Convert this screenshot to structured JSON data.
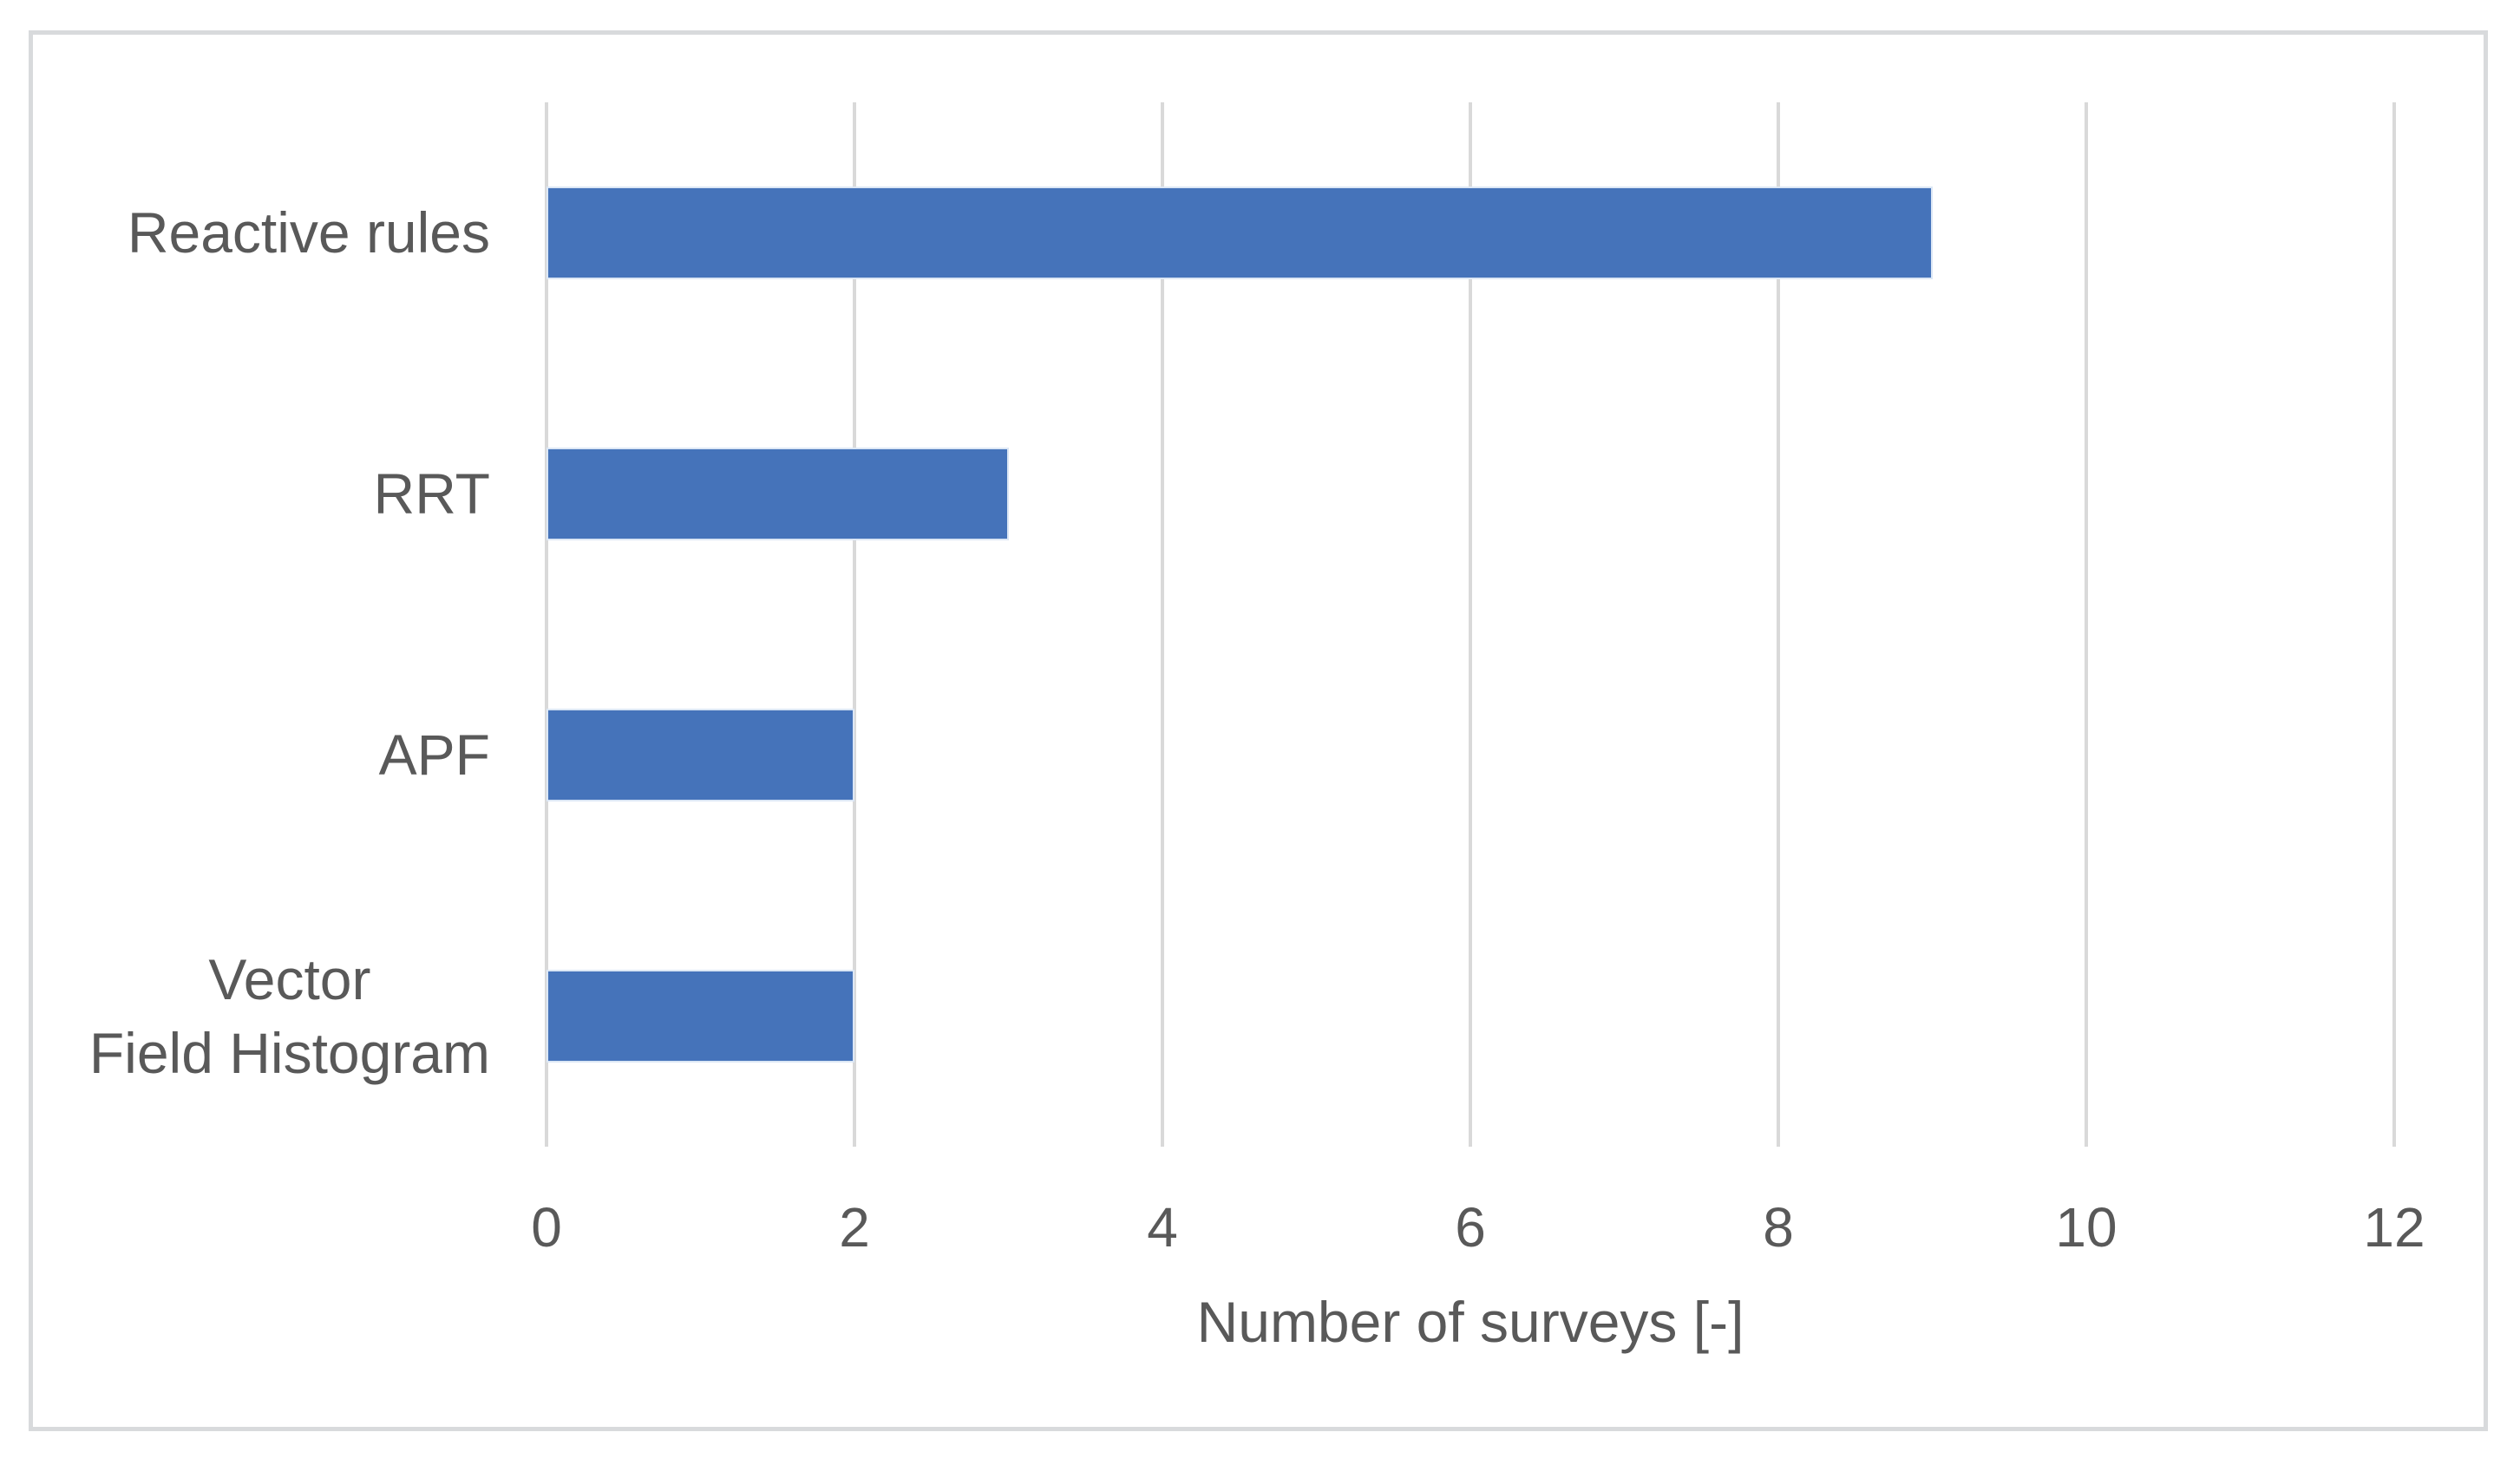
{
  "chart_data": {
    "type": "bar",
    "orientation": "horizontal",
    "title": "",
    "xlabel": "Number of surveys [-]",
    "ylabel": "",
    "categories": [
      "Reactive rules",
      "RRT",
      "APF",
      "Vector\nField Histogram"
    ],
    "values": [
      9,
      3,
      2,
      2
    ],
    "xlim": [
      0,
      12
    ],
    "x_ticks": [
      0,
      2,
      4,
      6,
      8,
      10,
      12
    ],
    "grid": "vertical-gridlines-on",
    "legend_position": "none",
    "colors": {
      "bar_fill": "#4573BA",
      "bar_border": "#dce7f5",
      "gridline": "#d9d9d9",
      "text": "#595959",
      "frame_border": "#d8dadc",
      "background": "#ffffff"
    }
  }
}
